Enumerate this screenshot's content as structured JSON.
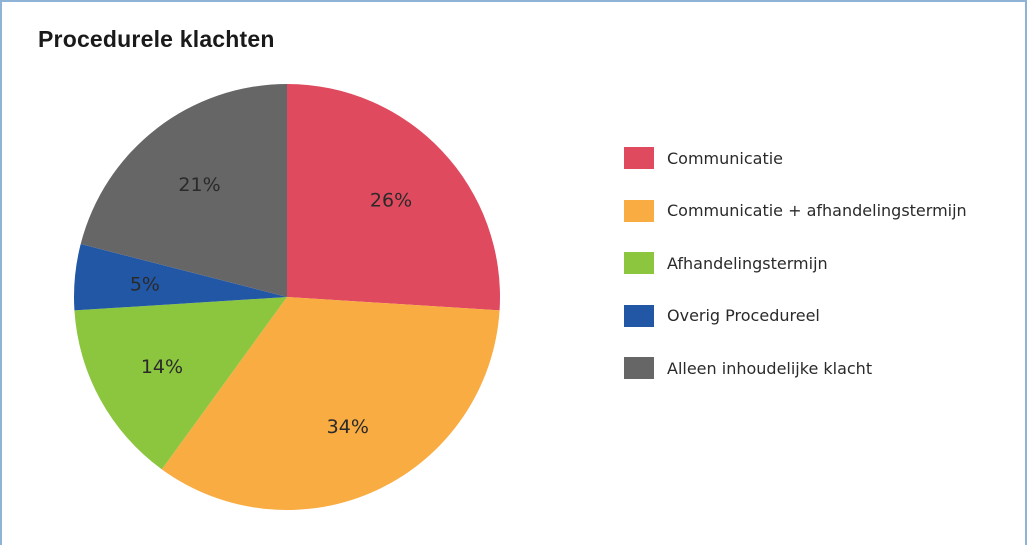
{
  "chart_data": {
    "type": "pie",
    "title": "Procedurele klachten",
    "slices": [
      {
        "name": "Communicatie",
        "value": 26,
        "label": "26%",
        "color": "#e04a5e"
      },
      {
        "name": "Communicatie + afhandelingstermijn",
        "value": 34,
        "label": "34%",
        "color": "#f9ac42"
      },
      {
        "name": "Afhandelingstermijn",
        "value": 14,
        "label": "14%",
        "color": "#8cc63f"
      },
      {
        "name": "Overig Procedureel",
        "value": 5,
        "label": "5%",
        "color": "#2157a5"
      },
      {
        "name": "Alleen inhoudelijke klacht",
        "value": 21,
        "label": "21%",
        "color": "#666666"
      }
    ],
    "legend_position": "right"
  }
}
